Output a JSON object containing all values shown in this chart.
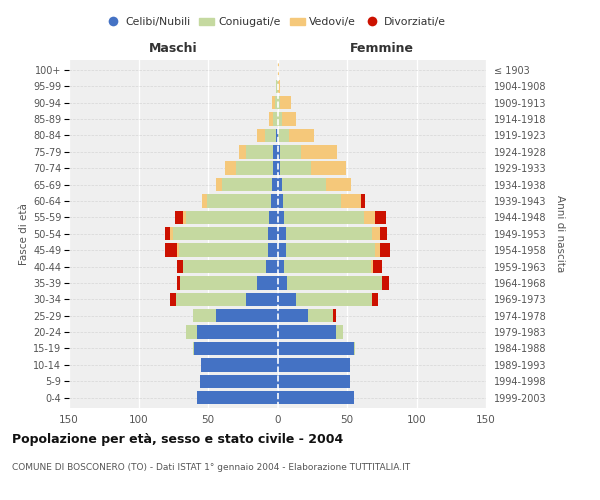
{
  "age_groups": [
    "0-4",
    "5-9",
    "10-14",
    "15-19",
    "20-24",
    "25-29",
    "30-34",
    "35-39",
    "40-44",
    "45-49",
    "50-54",
    "55-59",
    "60-64",
    "65-69",
    "70-74",
    "75-79",
    "80-84",
    "85-89",
    "90-94",
    "95-99",
    "100+"
  ],
  "birth_years": [
    "1999-2003",
    "1994-1998",
    "1989-1993",
    "1984-1988",
    "1979-1983",
    "1974-1978",
    "1969-1973",
    "1964-1968",
    "1959-1963",
    "1954-1958",
    "1949-1953",
    "1944-1948",
    "1939-1943",
    "1934-1938",
    "1929-1933",
    "1924-1928",
    "1919-1923",
    "1914-1918",
    "1909-1913",
    "1904-1908",
    "≤ 1903"
  ],
  "colors": {
    "celibi": "#4472c4",
    "coniugati": "#c5d9a0",
    "vedovi": "#f5c87a",
    "divorziati": "#cc1100"
  },
  "maschi": {
    "celibi": [
      58,
      56,
      55,
      60,
      58,
      44,
      23,
      15,
      8,
      7,
      7,
      6,
      5,
      4,
      3,
      3,
      1,
      0,
      0,
      0,
      0
    ],
    "coniugati": [
      0,
      0,
      0,
      1,
      8,
      17,
      50,
      55,
      60,
      64,
      68,
      60,
      46,
      36,
      27,
      20,
      8,
      3,
      2,
      1,
      0
    ],
    "vedovi": [
      0,
      0,
      0,
      0,
      0,
      0,
      0,
      0,
      0,
      1,
      2,
      2,
      3,
      4,
      8,
      5,
      6,
      3,
      2,
      0,
      0
    ],
    "divorziati": [
      0,
      0,
      0,
      0,
      0,
      0,
      4,
      2,
      4,
      9,
      4,
      6,
      0,
      0,
      0,
      0,
      0,
      0,
      0,
      0,
      0
    ]
  },
  "femmine": {
    "celibi": [
      55,
      52,
      52,
      55,
      42,
      22,
      13,
      7,
      5,
      6,
      6,
      5,
      4,
      3,
      2,
      2,
      0,
      0,
      0,
      0,
      0
    ],
    "coniugati": [
      0,
      0,
      0,
      1,
      5,
      18,
      55,
      68,
      62,
      64,
      62,
      57,
      42,
      32,
      22,
      15,
      8,
      3,
      2,
      0,
      0
    ],
    "vedovi": [
      0,
      0,
      0,
      0,
      0,
      0,
      0,
      0,
      2,
      4,
      6,
      8,
      14,
      18,
      25,
      26,
      18,
      10,
      8,
      2,
      1
    ],
    "divorziati": [
      0,
      0,
      0,
      0,
      0,
      2,
      4,
      5,
      6,
      7,
      5,
      8,
      3,
      0,
      0,
      0,
      0,
      0,
      0,
      0,
      0
    ]
  },
  "xlim": 150,
  "title": "Popolazione per età, sesso e stato civile - 2004",
  "subtitle": "COMUNE DI BOSCONERO (TO) - Dati ISTAT 1° gennaio 2004 - Elaborazione TUTTITALIA.IT",
  "header_left": "Maschi",
  "header_right": "Femmine",
  "ylabel_left": "Fasce di età",
  "ylabel_right": "Anni di nascita",
  "bg_color": "#efefef",
  "legend_labels": [
    "Celibi/Nubili",
    "Coniugati/e",
    "Vedovi/e",
    "Divorziati/e"
  ],
  "xticks": [
    150,
    100,
    50,
    0,
    50,
    100,
    150
  ]
}
